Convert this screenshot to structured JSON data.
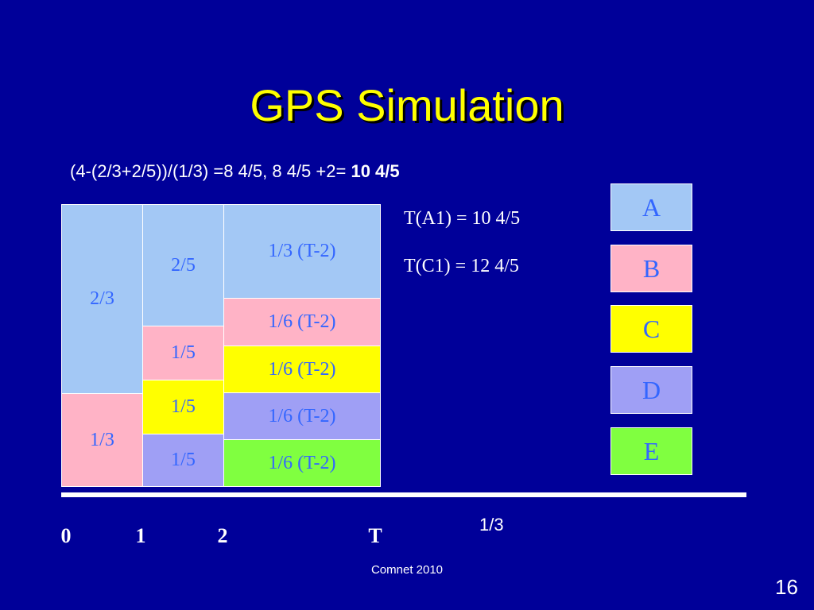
{
  "title": "GPS Simulation",
  "formula": {
    "text": "(4-(2/3+2/5))/(1/3) =8 4/5, 8 4/5 +2=",
    "bold": "10 4/5"
  },
  "cells": [
    {
      "label": "2/3"
    },
    {
      "label": "1/3"
    },
    {
      "label": "2/5"
    },
    {
      "label": "1/5"
    },
    {
      "label": "1/5"
    },
    {
      "label": "1/5"
    },
    {
      "label": "1/3 (T-2)"
    },
    {
      "label": "1/6 (T-2)"
    },
    {
      "label": "1/6 (T-2)"
    },
    {
      "label": "1/6 (T-2)"
    },
    {
      "label": "1/6 (T-2)"
    }
  ],
  "notes": [
    "T(A1) = 10 4/5",
    "T(C1) = 12 4/5"
  ],
  "legend": [
    "A",
    "B",
    "C",
    "D",
    "E"
  ],
  "axis_labels": [
    "0",
    "1",
    "2",
    "T"
  ],
  "rate_label": "1/3",
  "footer": "Comnet 2010",
  "page_number": "16"
}
